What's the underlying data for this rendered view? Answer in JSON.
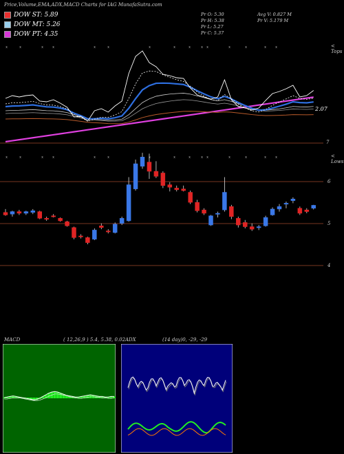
{
  "header": {
    "title": "Price,Volume,EMA,ADX,MACD Charts for IAG MunafaSutra.com"
  },
  "legend": [
    {
      "label": "DOW ST: 5.89",
      "color": "#e83030"
    },
    {
      "label": "DOW MT: 5.26",
      "color": "#9ad0ee"
    },
    {
      "label": "DOW PT: 4.35",
      "color": "#d838d8"
    }
  ],
  "stats": {
    "pr_o": "Pr  O: 5.30",
    "pr_h": "Pr  H: 5.38",
    "pr_l": "Pr  L: 5.27",
    "pr_c": "Pr  C: 5.37",
    "avg_v": "Avg V: 0.827 M",
    "pr_v": "Pr  V: 5.179 M"
  },
  "top_panel": {
    "corner_label": "< Tops",
    "price_tag": "2.07",
    "low_tag": "7"
  },
  "candle_panel": {
    "corner_label": "< Lows",
    "levels": [
      "6",
      "5",
      "4"
    ]
  },
  "macd": {
    "title": "MACD",
    "params": "( 12,26,9 ) 5.4,  5.38,  0.02"
  },
  "adx": {
    "title": "ADX",
    "params": "(14  day)0,  -29,  -29"
  },
  "colors": {
    "up": "#3a78e8",
    "down": "#e02424",
    "ema_red": "#b83030",
    "ema_purple": "#e040e0",
    "macd_green": "#22ee22",
    "adx_green": "#22ee22",
    "adx_orange": "#ff7a00"
  },
  "chart_data": [
    {
      "type": "candlestick",
      "title": "Price,Volume,EMA,ADX,MACD Charts for IAG MunafaSutra.com",
      "ohlc_last": {
        "open": 5.3,
        "high": 5.38,
        "low": 5.27,
        "close": 5.37
      },
      "candles": [
        {
          "o": 5.2,
          "h": 5.28,
          "l": 5.12,
          "c": 5.14
        },
        {
          "o": 5.16,
          "h": 5.24,
          "l": 5.1,
          "c": 5.22
        },
        {
          "o": 5.22,
          "h": 5.26,
          "l": 5.14,
          "c": 5.18
        },
        {
          "o": 5.18,
          "h": 5.24,
          "l": 5.14,
          "c": 5.22
        },
        {
          "o": 5.2,
          "h": 5.28,
          "l": 5.16,
          "c": 5.24
        },
        {
          "o": 5.22,
          "h": 5.24,
          "l": 5.04,
          "c": 5.06
        },
        {
          "o": 5.06,
          "h": 5.1,
          "l": 5.0,
          "c": 5.04
        },
        {
          "o": 5.12,
          "h": 5.16,
          "l": 5.08,
          "c": 5.1
        },
        {
          "o": 5.06,
          "h": 5.08,
          "l": 4.98,
          "c": 5.0
        },
        {
          "o": 4.98,
          "h": 5.0,
          "l": 4.86,
          "c": 4.88
        },
        {
          "o": 4.84,
          "h": 4.86,
          "l": 4.56,
          "c": 4.6
        },
        {
          "o": 4.64,
          "h": 4.68,
          "l": 4.58,
          "c": 4.62
        },
        {
          "o": 4.6,
          "h": 4.62,
          "l": 4.44,
          "c": 4.48
        },
        {
          "o": 4.56,
          "h": 4.82,
          "l": 4.54,
          "c": 4.78
        },
        {
          "o": 4.88,
          "h": 4.94,
          "l": 4.8,
          "c": 4.84
        },
        {
          "o": 4.76,
          "h": 4.8,
          "l": 4.7,
          "c": 4.74
        },
        {
          "o": 4.72,
          "h": 4.96,
          "l": 4.7,
          "c": 4.92
        },
        {
          "o": 4.94,
          "h": 5.1,
          "l": 4.9,
          "c": 5.06
        },
        {
          "o": 5.0,
          "h": 6.04,
          "l": 4.98,
          "c": 5.86
        },
        {
          "o": 5.76,
          "h": 6.46,
          "l": 5.72,
          "c": 6.36
        },
        {
          "o": 6.3,
          "h": 6.62,
          "l": 6.24,
          "c": 6.52
        },
        {
          "o": 6.4,
          "h": 6.6,
          "l": 6.0,
          "c": 6.18
        },
        {
          "o": 6.18,
          "h": 6.42,
          "l": 6.02,
          "c": 6.06
        },
        {
          "o": 6.14,
          "h": 6.18,
          "l": 5.78,
          "c": 5.84
        },
        {
          "o": 5.86,
          "h": 5.92,
          "l": 5.7,
          "c": 5.8
        },
        {
          "o": 5.78,
          "h": 5.84,
          "l": 5.7,
          "c": 5.74
        },
        {
          "o": 5.76,
          "h": 5.84,
          "l": 5.7,
          "c": 5.72
        },
        {
          "o": 5.68,
          "h": 5.72,
          "l": 5.4,
          "c": 5.44
        },
        {
          "o": 5.44,
          "h": 5.5,
          "l": 5.2,
          "c": 5.24
        },
        {
          "o": 5.26,
          "h": 5.3,
          "l": 5.14,
          "c": 5.18
        },
        {
          "o": 4.9,
          "h": 5.14,
          "l": 4.88,
          "c": 5.12
        },
        {
          "o": 5.16,
          "h": 5.22,
          "l": 5.08,
          "c": 5.18
        },
        {
          "o": 5.26,
          "h": 6.04,
          "l": 5.22,
          "c": 5.68
        },
        {
          "o": 5.34,
          "h": 5.38,
          "l": 5.04,
          "c": 5.1
        },
        {
          "o": 5.06,
          "h": 5.1,
          "l": 4.84,
          "c": 4.9
        },
        {
          "o": 4.96,
          "h": 5.02,
          "l": 4.82,
          "c": 4.86
        },
        {
          "o": 4.86,
          "h": 4.94,
          "l": 4.76,
          "c": 4.8
        },
        {
          "o": 4.84,
          "h": 4.9,
          "l": 4.78,
          "c": 4.86
        },
        {
          "o": 4.88,
          "h": 5.12,
          "l": 4.86,
          "c": 5.08
        },
        {
          "o": 5.14,
          "h": 5.32,
          "l": 5.12,
          "c": 5.28
        },
        {
          "o": 5.28,
          "h": 5.4,
          "l": 5.22,
          "c": 5.34
        },
        {
          "o": 5.4,
          "h": 5.46,
          "l": 5.3,
          "c": 5.42
        },
        {
          "o": 5.48,
          "h": 5.56,
          "l": 5.42,
          "c": 5.52
        },
        {
          "o": 5.3,
          "h": 5.34,
          "l": 5.14,
          "c": 5.18
        },
        {
          "o": 5.26,
          "h": 5.3,
          "l": 5.18,
          "c": 5.22
        },
        {
          "o": 5.3,
          "h": 5.38,
          "l": 5.27,
          "c": 5.37
        }
      ],
      "price_levels": [
        6,
        5,
        4
      ]
    },
    {
      "type": "line",
      "title": "MACD",
      "series": [
        {
          "name": "MACD",
          "values": [
            0.0,
            0.01,
            0.02,
            0.03,
            0.02,
            0.01,
            0.0,
            -0.01,
            -0.02,
            -0.03,
            -0.04,
            -0.03,
            -0.01,
            0.02,
            0.05,
            0.08,
            0.1,
            0.11,
            0.1,
            0.08,
            0.06,
            0.04,
            0.03,
            0.02,
            0.01,
            0.01,
            0.02,
            0.03,
            0.04,
            0.05,
            0.04,
            0.03,
            0.02,
            0.02,
            0.01,
            0.01,
            0.02,
            0.02
          ]
        },
        {
          "name": "Signal",
          "values": [
            0.0,
            0.0,
            0.01,
            0.02,
            0.02,
            0.02,
            0.01,
            0.0,
            -0.01,
            -0.02,
            -0.03,
            -0.03,
            -0.02,
            0.0,
            0.02,
            0.05,
            0.07,
            0.09,
            0.09,
            0.08,
            0.07,
            0.06,
            0.04,
            0.03,
            0.02,
            0.01,
            0.01,
            0.02,
            0.03,
            0.04,
            0.04,
            0.03,
            0.03,
            0.02,
            0.02,
            0.01,
            0.01,
            0.02
          ]
        }
      ]
    },
    {
      "type": "line",
      "title": "ADX",
      "series": [
        {
          "name": "ADX",
          "values": [
            -29,
            -29,
            -29,
            -29,
            -29,
            -29,
            -29,
            -29,
            -29,
            -29,
            -29,
            -29,
            -29,
            -29,
            -29,
            -29,
            -29,
            -29,
            -29,
            -29,
            -29,
            -29,
            -29,
            -29,
            -29,
            -29,
            -29,
            -29,
            -29,
            -29,
            -29,
            -29,
            -29,
            -29,
            -29,
            -29,
            -29,
            -29
          ]
        }
      ]
    }
  ]
}
